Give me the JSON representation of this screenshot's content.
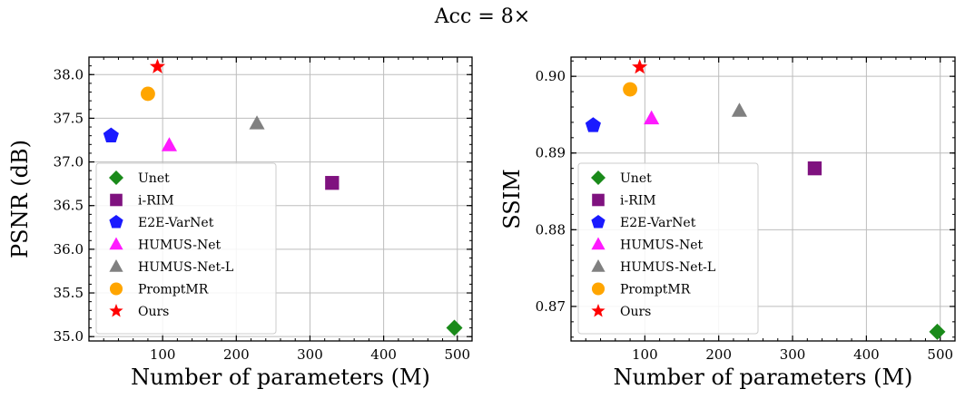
{
  "figure": {
    "suptitle": "Acc = 8×"
  },
  "legend_order": [
    "Unet",
    "i-RIM",
    "E2E-VarNet",
    "HUMUS-Net",
    "HUMUS-Net-L",
    "PromptMR",
    "Ours"
  ],
  "styles": {
    "Unet": {
      "color": "#1a8a1a",
      "marker": "diamond"
    },
    "i-RIM": {
      "color": "#7f127f",
      "marker": "square"
    },
    "E2E-VarNet": {
      "color": "#1a1aff",
      "marker": "pentagon"
    },
    "HUMUS-Net": {
      "color": "#ff1aff",
      "marker": "triangle"
    },
    "HUMUS-Net-L": {
      "color": "#808080",
      "marker": "triangle"
    },
    "PromptMR": {
      "color": "#ffa500",
      "marker": "circle"
    },
    "Ours": {
      "color": "#ff0000",
      "marker": "star"
    }
  },
  "chart_data": [
    {
      "type": "scatter",
      "title": "",
      "xlabel": "Number of parameters (M)",
      "ylabel": "PSNR (dB)",
      "xlim": [
        0,
        520
      ],
      "ylim": [
        34.95,
        38.2
      ],
      "xticks": [
        100,
        200,
        300,
        400,
        500
      ],
      "xtick_labels": [
        "100",
        "200",
        "300",
        "400",
        "500"
      ],
      "yticks": [
        35.0,
        35.5,
        36.0,
        36.5,
        37.0,
        37.5,
        38.0
      ],
      "ytick_labels": [
        "35.0",
        "35.5",
        "36.0",
        "36.5",
        "37.0",
        "37.5",
        "38.0"
      ],
      "grid": true,
      "legend_position": "lower-left",
      "series": [
        {
          "name": "Unet",
          "x": [
            496
          ],
          "y": [
            35.1
          ]
        },
        {
          "name": "i-RIM",
          "x": [
            330
          ],
          "y": [
            36.76
          ]
        },
        {
          "name": "E2E-VarNet",
          "x": [
            30
          ],
          "y": [
            37.3
          ]
        },
        {
          "name": "HUMUS-Net",
          "x": [
            109
          ],
          "y": [
            37.19
          ]
        },
        {
          "name": "HUMUS-Net-L",
          "x": [
            228
          ],
          "y": [
            37.44
          ]
        },
        {
          "name": "PromptMR",
          "x": [
            80
          ],
          "y": [
            37.78
          ]
        },
        {
          "name": "Ours",
          "x": [
            93
          ],
          "y": [
            38.09
          ]
        }
      ]
    },
    {
      "type": "scatter",
      "title": "",
      "xlabel": "Number of parameters (M)",
      "ylabel": "SSIM",
      "xlim": [
        0,
        520
      ],
      "ylim": [
        0.8655,
        0.9025
      ],
      "xticks": [
        100,
        200,
        300,
        400,
        500
      ],
      "xtick_labels": [
        "100",
        "200",
        "300",
        "400",
        "500"
      ],
      "yticks": [
        0.87,
        0.88,
        0.89,
        0.9
      ],
      "ytick_labels": [
        "0.87",
        "0.88",
        "0.89",
        "0.90"
      ],
      "grid": true,
      "legend_position": "lower-left",
      "series": [
        {
          "name": "Unet",
          "x": [
            496
          ],
          "y": [
            0.8667
          ]
        },
        {
          "name": "i-RIM",
          "x": [
            330
          ],
          "y": [
            0.888
          ]
        },
        {
          "name": "E2E-VarNet",
          "x": [
            30
          ],
          "y": [
            0.8936
          ]
        },
        {
          "name": "HUMUS-Net",
          "x": [
            109
          ],
          "y": [
            0.8945
          ]
        },
        {
          "name": "HUMUS-Net-L",
          "x": [
            228
          ],
          "y": [
            0.8955
          ]
        },
        {
          "name": "PromptMR",
          "x": [
            80
          ],
          "y": [
            0.8983
          ]
        },
        {
          "name": "Ours",
          "x": [
            93
          ],
          "y": [
            0.9012
          ]
        }
      ]
    }
  ]
}
